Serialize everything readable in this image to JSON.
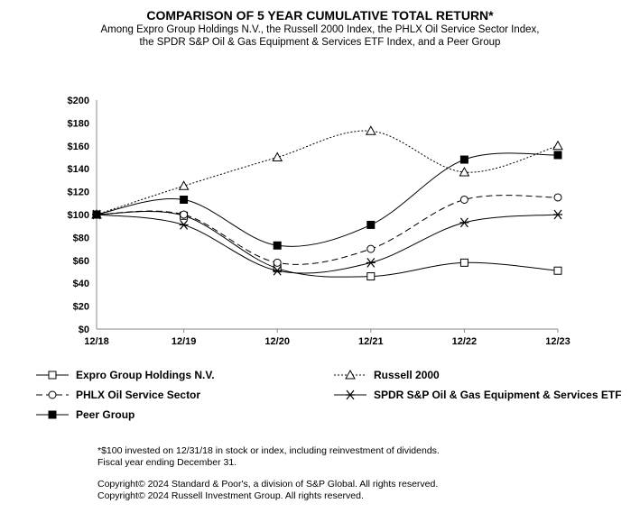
{
  "chart_data": {
    "type": "line",
    "title": "COMPARISON OF 5 YEAR CUMULATIVE TOTAL RETURN*",
    "subtitle": [
      "Among Expro Group Holdings N.V., the Russell 2000 Index, the PHLX Oil Service Sector Index,",
      "the SPDR S&P Oil & Gas Equipment & Services ETF Index, and a Peer Group"
    ],
    "categories": [
      "12/18",
      "12/19",
      "12/20",
      "12/21",
      "12/22",
      "12/23"
    ],
    "yticks": [
      "$0",
      "$20",
      "$40",
      "$60",
      "$80",
      "$100",
      "$120",
      "$140",
      "$160",
      "$180",
      "$200"
    ],
    "ylim": [
      0,
      200
    ],
    "grid": false,
    "legend_position": "bottom",
    "series": [
      {
        "name": "Expro Group Holdings N.V.",
        "marker": "open-square",
        "dash": "solid",
        "values": [
          100,
          99,
          53,
          46,
          58,
          51
        ]
      },
      {
        "name": "Russell 2000",
        "marker": "open-triangle",
        "dash": "dotted",
        "values": [
          100,
          125,
          150,
          173,
          137,
          160
        ]
      },
      {
        "name": "PHLX Oil Service Sector",
        "marker": "open-circle",
        "dash": "dashed",
        "values": [
          100,
          100,
          58,
          70,
          113,
          115
        ]
      },
      {
        "name": "SPDR S&P Oil & Gas Equipment & Services ETF",
        "marker": "asterisk",
        "dash": "solid",
        "values": [
          100,
          91,
          51,
          58,
          93,
          100
        ]
      },
      {
        "name": "Peer Group",
        "marker": "filled-square",
        "dash": "solid",
        "values": [
          100,
          113,
          73,
          91,
          148,
          152
        ]
      }
    ]
  },
  "footnotes": [
    "*$100 invested on 12/31/18 in stock or index, including reinvestment of dividends.",
    "Fiscal year ending December 31.",
    "Copyright© 2024 Standard & Poor's, a division of S&P Global.  All rights reserved.",
    "Copyright© 2024 Russell Investment Group.  All rights reserved."
  ]
}
